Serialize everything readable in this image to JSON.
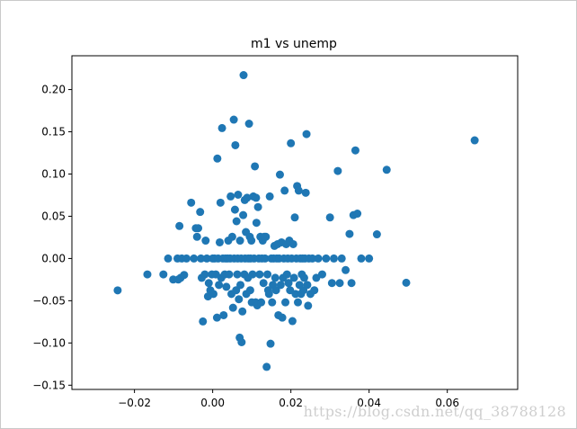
{
  "colors": {
    "marker": "#1f77b4",
    "axes": "#000000",
    "background": "#ffffff"
  },
  "chart_data": {
    "type": "scatter",
    "title": "m1 vs unemp",
    "xlabel": "",
    "ylabel": "",
    "xlim": [
      -0.036,
      0.078
    ],
    "ylim": [
      -0.155,
      0.24
    ],
    "grid": false,
    "legend": "none",
    "xticks": [
      -0.02,
      0.0,
      0.02,
      0.04,
      0.06
    ],
    "xtick_labels": [
      "−0.02",
      "0.00",
      "0.02",
      "0.04",
      "0.06"
    ],
    "yticks": [
      -0.15,
      -0.1,
      -0.05,
      0.0,
      0.05,
      0.1,
      0.15,
      0.2
    ],
    "ytick_labels": [
      "−0.15",
      "−0.10",
      "−0.05",
      "0.00",
      "0.05",
      "0.10",
      "0.15",
      "0.20"
    ],
    "points": [
      [
        -0.0243,
        -0.0377
      ],
      [
        -0.0167,
        -0.0188
      ],
      [
        -0.0126,
        -0.0188
      ],
      [
        -0.0114,
        0.0
      ],
      [
        -0.0101,
        -0.0249
      ],
      [
        -0.009,
        0.0
      ],
      [
        -0.0088,
        -0.0249
      ],
      [
        -0.0085,
        0.0385
      ],
      [
        -0.0082,
        -0.0229
      ],
      [
        -0.0079,
        0.0
      ],
      [
        -0.0073,
        -0.0195
      ],
      [
        -0.0067,
        0.0
      ],
      [
        -0.0055,
        0.0661
      ],
      [
        -0.0048,
        0.0
      ],
      [
        -0.0043,
        0.0359
      ],
      [
        -0.004,
        0.0257
      ],
      [
        -0.0037,
        0.0359
      ],
      [
        -0.0032,
        0.0551
      ],
      [
        -0.003,
        0.0
      ],
      [
        -0.0028,
        -0.0229
      ],
      [
        -0.0025,
        -0.0745
      ],
      [
        -0.002,
        -0.0188
      ],
      [
        -0.0018,
        0.0212
      ],
      [
        -0.0015,
        0.0
      ],
      [
        -0.0012,
        -0.0449
      ],
      [
        -0.001,
        -0.0291
      ],
      [
        -0.0006,
        -0.0376
      ],
      [
        -0.0002,
        -0.0188
      ],
      [
        0.0,
        0.0
      ],
      [
        0.0002,
        -0.042
      ],
      [
        0.0005,
        0.0
      ],
      [
        0.0008,
        -0.0188
      ],
      [
        0.0011,
        -0.07
      ],
      [
        0.0012,
        0.1183
      ],
      [
        0.0014,
        0.0
      ],
      [
        0.0016,
        -0.0313
      ],
      [
        0.0018,
        0.0191
      ],
      [
        0.002,
        0.0661
      ],
      [
        0.0022,
        -0.0229
      ],
      [
        0.0024,
        0.1544
      ],
      [
        0.0026,
        0.0
      ],
      [
        0.0028,
        -0.0671
      ],
      [
        0.0031,
        -0.0188
      ],
      [
        0.0033,
        0.0
      ],
      [
        0.0035,
        -0.0335
      ],
      [
        0.0038,
        0.0
      ],
      [
        0.004,
        0.0212
      ],
      [
        0.0042,
        -0.0188
      ],
      [
        0.0045,
        0.0
      ],
      [
        0.0046,
        0.0735
      ],
      [
        0.0048,
        -0.042
      ],
      [
        0.005,
        0.0257
      ],
      [
        0.0052,
        -0.0583
      ],
      [
        0.0054,
        0.1644
      ],
      [
        0.0055,
        0.0
      ],
      [
        0.0057,
        0.0578
      ],
      [
        0.0058,
        0.1341
      ],
      [
        0.006,
        -0.0376
      ],
      [
        0.0061,
        0.0441
      ],
      [
        0.0063,
        -0.0188
      ],
      [
        0.0064,
        0.0
      ],
      [
        0.0065,
        0.0755
      ],
      [
        0.0067,
        -0.0482
      ],
      [
        0.0069,
        -0.0937
      ],
      [
        0.007,
        0.0212
      ],
      [
        0.0071,
        -0.0313
      ],
      [
        0.0073,
        0.0
      ],
      [
        0.0074,
        -0.0991
      ],
      [
        0.0076,
        -0.0627
      ],
      [
        0.0078,
        0.0514
      ],
      [
        0.0079,
        0.2171
      ],
      [
        0.0081,
        -0.0188
      ],
      [
        0.0082,
        0.0692
      ],
      [
        0.0083,
        0.0
      ],
      [
        0.0085,
        0.0313
      ],
      [
        0.0086,
        -0.042
      ],
      [
        0.0088,
        0.0719
      ],
      [
        0.009,
        -0.0229
      ],
      [
        0.0091,
        0.0
      ],
      [
        0.0093,
        0.1596
      ],
      [
        0.0095,
        0.0257
      ],
      [
        0.0096,
        -0.0376
      ],
      [
        0.0097,
        0.0
      ],
      [
        0.0099,
        0.0212
      ],
      [
        0.01,
        -0.0519
      ],
      [
        0.0102,
        -0.0188
      ],
      [
        0.0104,
        0.0735
      ],
      [
        0.0106,
        0.0
      ],
      [
        0.0108,
        0.1091
      ],
      [
        0.011,
        -0.0519
      ],
      [
        0.0111,
        0.0719
      ],
      [
        0.0112,
        0.0423
      ],
      [
        0.0114,
        -0.0555
      ],
      [
        0.0116,
        0.0609
      ],
      [
        0.0118,
        0.0
      ],
      [
        0.012,
        -0.0188
      ],
      [
        0.0122,
        0.0257
      ],
      [
        0.0124,
        -0.0519
      ],
      [
        0.0126,
        0.0
      ],
      [
        0.0128,
        0.0212
      ],
      [
        0.013,
        -0.0291
      ],
      [
        0.0132,
        0.0257
      ],
      [
        0.0134,
        0.0
      ],
      [
        0.0136,
        0.0257
      ],
      [
        0.0138,
        -0.1283
      ],
      [
        0.014,
        -0.0188
      ],
      [
        0.0142,
        -0.0376
      ],
      [
        0.0144,
        -0.042
      ],
      [
        0.0146,
        0.0735
      ],
      [
        0.0148,
        -0.1009
      ],
      [
        0.015,
        0.0
      ],
      [
        0.0152,
        -0.0519
      ],
      [
        0.0154,
        -0.0313
      ],
      [
        0.0156,
        0.0
      ],
      [
        0.0158,
        0.0149
      ],
      [
        0.016,
        -0.0229
      ],
      [
        0.0162,
        -0.0376
      ],
      [
        0.0164,
        0.0
      ],
      [
        0.0166,
        0.017
      ],
      [
        0.0168,
        -0.0671
      ],
      [
        0.017,
        0.0
      ],
      [
        0.0172,
        0.0993
      ],
      [
        0.0174,
        -0.0313
      ],
      [
        0.0176,
        0.0191
      ],
      [
        0.0178,
        -0.07
      ],
      [
        0.018,
        -0.0229
      ],
      [
        0.0182,
        0.0
      ],
      [
        0.0184,
        0.0804
      ],
      [
        0.0186,
        -0.0519
      ],
      [
        0.0188,
        0.017
      ],
      [
        0.019,
        -0.0188
      ],
      [
        0.0192,
        0.0
      ],
      [
        0.0194,
        -0.029
      ],
      [
        0.0196,
        0.0212
      ],
      [
        0.0198,
        -0.0376
      ],
      [
        0.02,
        0.1364
      ],
      [
        0.0202,
        0.0
      ],
      [
        0.0204,
        -0.0741
      ],
      [
        0.0206,
        0.017
      ],
      [
        0.0208,
        -0.0229
      ],
      [
        0.021,
        0.0486
      ],
      [
        0.0212,
        -0.042
      ],
      [
        0.0214,
        0.0
      ],
      [
        0.0216,
        0.0858
      ],
      [
        0.0218,
        -0.0519
      ],
      [
        0.022,
        0.0804
      ],
      [
        0.0222,
        -0.0313
      ],
      [
        0.0224,
        0.0
      ],
      [
        0.0226,
        -0.042
      ],
      [
        0.0228,
        -0.0188
      ],
      [
        0.023,
        0.0
      ],
      [
        0.0232,
        -0.0376
      ],
      [
        0.0234,
        -0.0229
      ],
      [
        0.0236,
        0.0
      ],
      [
        0.0238,
        0.0778
      ],
      [
        0.024,
        0.1473
      ],
      [
        0.0242,
        -0.0313
      ],
      [
        0.0244,
        -0.0559
      ],
      [
        0.0246,
        0.0
      ],
      [
        0.025,
        -0.042
      ],
      [
        0.0255,
        0.0
      ],
      [
        0.026,
        -0.0376
      ],
      [
        0.0265,
        -0.0229
      ],
      [
        0.027,
        0.0
      ],
      [
        0.028,
        -0.0188
      ],
      [
        0.029,
        0.0
      ],
      [
        0.03,
        0.0486
      ],
      [
        0.0305,
        -0.0291
      ],
      [
        0.031,
        0.0
      ],
      [
        0.032,
        0.1036
      ],
      [
        0.0325,
        -0.0291
      ],
      [
        0.033,
        0.0
      ],
      [
        0.034,
        -0.0137
      ],
      [
        0.035,
        0.0291
      ],
      [
        0.0355,
        -0.0291
      ],
      [
        0.036,
        0.0514
      ],
      [
        0.0365,
        0.128
      ],
      [
        0.037,
        0.0531
      ],
      [
        0.038,
        0.0
      ],
      [
        0.04,
        0.0
      ],
      [
        0.042,
        0.0286
      ],
      [
        0.0445,
        0.105
      ],
      [
        0.0495,
        -0.0287
      ],
      [
        0.067,
        0.1399
      ]
    ]
  },
  "watermark": {
    "text": "https://blog.csdn.net/qq_38788128"
  }
}
